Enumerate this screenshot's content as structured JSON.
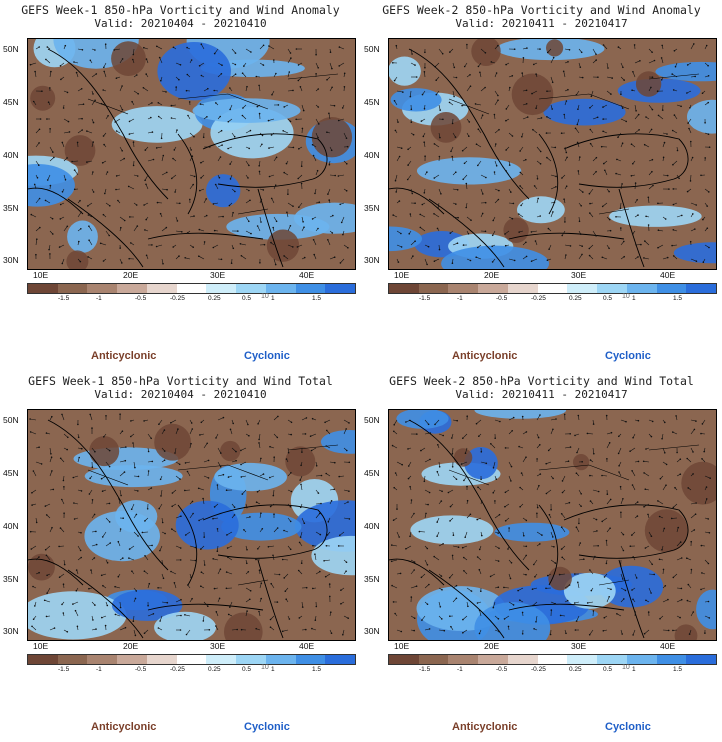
{
  "panels": [
    {
      "title": "GEFS Week-1 850-hPa Vorticity and Wind Anomaly",
      "valid": "Valid: 20210404 - 20210410"
    },
    {
      "title": "GEFS Week-2 850-hPa Vorticity and Wind Anomaly",
      "valid": "Valid: 20210411 - 20210417"
    },
    {
      "title": "GEFS Week-1 850-hPa Vorticity and Wind Total",
      "valid": "Valid: 20210404 - 20210410"
    },
    {
      "title": "GEFS Week-2 850-hPa Vorticity and Wind Total",
      "valid": "Valid: 20210411 - 20210417"
    }
  ],
  "lat_labels": [
    "50N",
    "45N",
    "40N",
    "35N",
    "30N"
  ],
  "lon_labels": [
    "10E",
    "20E",
    "30E",
    "40E"
  ],
  "colorbar": {
    "ticks": [
      "-1.5",
      "-1",
      "-0.5",
      "-0.25",
      "0.25",
      "0.5",
      "1",
      "1.5"
    ],
    "icon_text": "10",
    "colors": [
      "#6e4636",
      "#8b6650",
      "#a98470",
      "#c9a99a",
      "#e7d6ce",
      "#ffffff",
      "#cfeefa",
      "#9dd6f5",
      "#6cb4ee",
      "#3f8fe5",
      "#2a6ddb"
    ]
  },
  "legend": {
    "anticyclonic": "Anticyclonic",
    "cyclonic": "Cyclonic"
  }
}
